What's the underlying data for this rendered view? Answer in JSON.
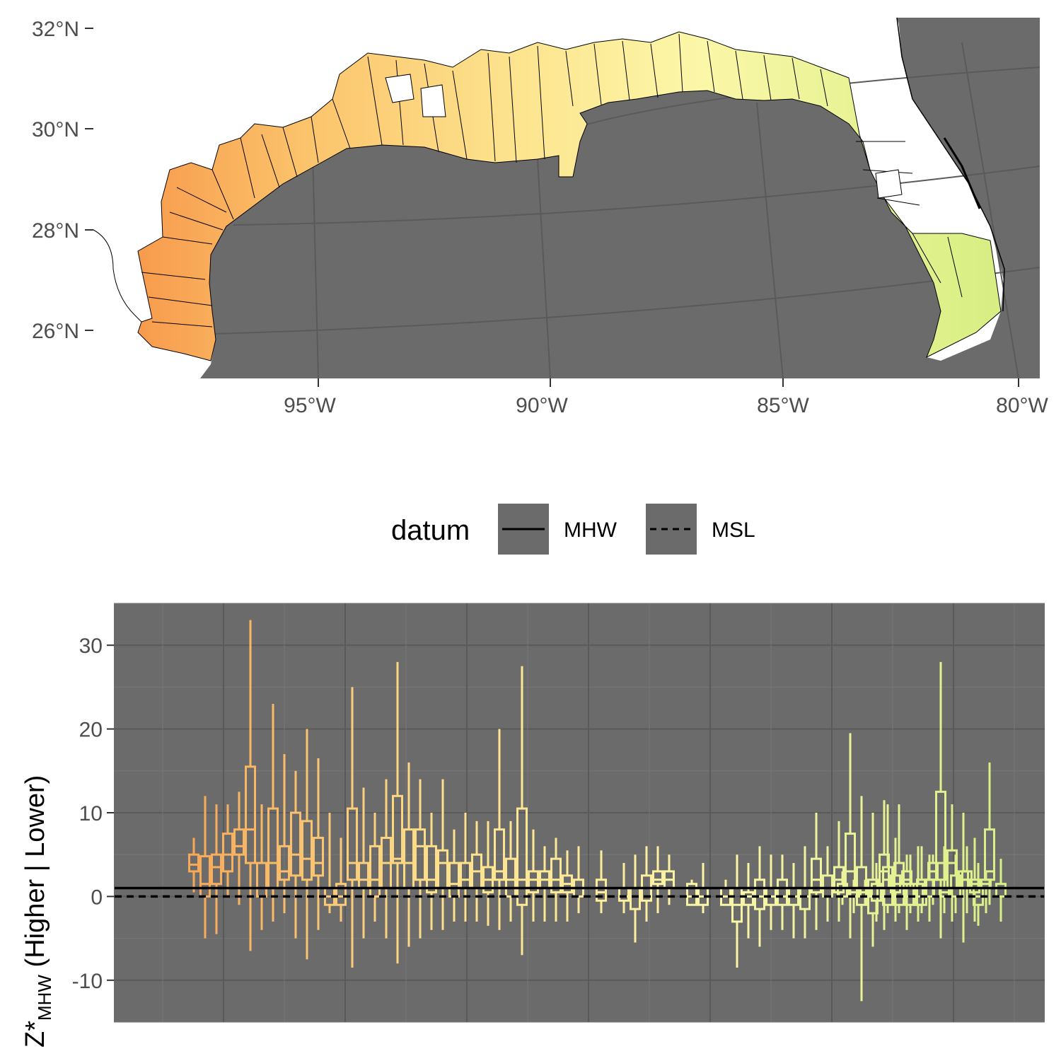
{
  "colors": {
    "panel_background": "#6b6b6b",
    "grid_major": "#5a5a5a",
    "grid_minor": "#777777",
    "land_outline": "#000000",
    "west_fill": "#f7a050",
    "mid_fill": "#fde08a",
    "east_fill": "#d8ef86"
  },
  "map": {
    "lat_labels": [
      "32°N",
      "30°N",
      "28°N",
      "26°N"
    ],
    "lon_labels": [
      "95°W",
      "90°W",
      "85°W",
      "80°W"
    ]
  },
  "legend": {
    "title": "datum",
    "items": [
      {
        "label": "MHW",
        "linetype": "solid"
      },
      {
        "label": "MSL",
        "linetype": "dashed"
      }
    ]
  },
  "chart_data": {
    "type": "boxplot",
    "ylabel_main": "Z*",
    "ylabel_sub": "MHW",
    "ylabel_rest": " (Higher | Lower)",
    "ylim": [
      -15,
      35
    ],
    "yticks": [
      30,
      20,
      10,
      0,
      -10
    ],
    "tick_labels": [
      "30",
      "20",
      "10",
      "0",
      "-10"
    ],
    "xlim": [
      0,
      150
    ],
    "hlines": [
      {
        "name": "MHW",
        "y": 1.0,
        "linetype": "solid"
      },
      {
        "name": "MSL",
        "y": 0.0,
        "linetype": "dashed"
      }
    ],
    "color_ramp": [
      "#f7a050",
      "#fde08a",
      "#fbf6a8",
      "#d8ef86"
    ],
    "boxes": [
      {
        "x": 7,
        "lo": 0.5,
        "q1": 3,
        "q3": 5,
        "hi": 7,
        "med": 3.8
      },
      {
        "x": 9,
        "lo": -5,
        "q1": 0,
        "q3": 4.8,
        "hi": 12,
        "med": 1.5
      },
      {
        "x": 11,
        "lo": -4.5,
        "q1": 1.5,
        "q3": 5,
        "hi": 11,
        "med": 3.5
      },
      {
        "x": 13,
        "lo": 0,
        "q1": 3,
        "q3": 7.5,
        "hi": 11,
        "med": 5
      },
      {
        "x": 15,
        "lo": -1,
        "q1": 5,
        "q3": 8,
        "hi": 12.5,
        "med": 6
      },
      {
        "x": 17,
        "lo": -6.5,
        "q1": 4,
        "q3": 15.5,
        "hi": 33,
        "med": 8
      },
      {
        "x": 19,
        "lo": -4,
        "q1": 0,
        "q3": 4,
        "hi": 11,
        "med": 1
      },
      {
        "x": 21,
        "lo": -3,
        "q1": 1,
        "q3": 10.5,
        "hi": 23,
        "med": 4
      },
      {
        "x": 23,
        "lo": -2,
        "q1": 2,
        "q3": 6,
        "hi": 17,
        "med": 3
      },
      {
        "x": 25,
        "lo": -5,
        "q1": 2.5,
        "q3": 10,
        "hi": 15,
        "med": 5
      },
      {
        "x": 27,
        "lo": -7.5,
        "q1": 2,
        "q3": 9,
        "hi": 20,
        "med": 4.5
      },
      {
        "x": 29,
        "lo": -4,
        "q1": 2.5,
        "q3": 7,
        "hi": 16.5,
        "med": 4
      },
      {
        "x": 31,
        "lo": -2,
        "q1": -1,
        "q3": 1,
        "hi": 10,
        "med": 0
      },
      {
        "x": 33,
        "lo": -3,
        "q1": -1,
        "q3": 1.5,
        "hi": 7,
        "med": 0
      },
      {
        "x": 35,
        "lo": -8.5,
        "q1": 2,
        "q3": 10.5,
        "hi": 25,
        "med": 4
      },
      {
        "x": 37,
        "lo": -5,
        "q1": 1,
        "q3": 4,
        "hi": 13,
        "med": 2
      },
      {
        "x": 39,
        "lo": -3,
        "q1": 0,
        "q3": 6,
        "hi": 10,
        "med": 2
      },
      {
        "x": 41,
        "lo": -5,
        "q1": 1,
        "q3": 7,
        "hi": 14,
        "med": 4
      },
      {
        "x": 43,
        "lo": -8,
        "q1": 4,
        "q3": 12,
        "hi": 28,
        "med": 4.5
      },
      {
        "x": 45,
        "lo": -6,
        "q1": 1,
        "q3": 8,
        "hi": 16,
        "med": 4
      },
      {
        "x": 47,
        "lo": -5,
        "q1": 2,
        "q3": 8,
        "hi": 14,
        "med": 6
      },
      {
        "x": 49,
        "lo": -4,
        "q1": 0.5,
        "q3": 6,
        "hi": 10,
        "med": 2
      },
      {
        "x": 51,
        "lo": -4,
        "q1": 1,
        "q3": 5.5,
        "hi": 14,
        "med": 4
      },
      {
        "x": 53,
        "lo": -3,
        "q1": 0,
        "q3": 4,
        "hi": 8,
        "med": 1.5
      },
      {
        "x": 55,
        "lo": -3,
        "q1": 1,
        "q3": 4,
        "hi": 10,
        "med": 2
      },
      {
        "x": 57,
        "lo": -3,
        "q1": 1,
        "q3": 5,
        "hi": 9,
        "med": 3
      },
      {
        "x": 59,
        "lo": -3.5,
        "q1": 0.5,
        "q3": 3.5,
        "hi": 9,
        "med": 2
      },
      {
        "x": 61,
        "lo": -4,
        "q1": 2,
        "q3": 8,
        "hi": 20,
        "med": 3
      },
      {
        "x": 63,
        "lo": -3,
        "q1": 0,
        "q3": 4.5,
        "hi": 9,
        "med": 2
      },
      {
        "x": 65,
        "lo": -7,
        "q1": -1,
        "q3": 10.5,
        "hi": 27.5,
        "med": 2
      },
      {
        "x": 67,
        "lo": -3,
        "q1": 0.5,
        "q3": 3,
        "hi": 8,
        "med": 2
      },
      {
        "x": 69,
        "lo": -3,
        "q1": 1,
        "q3": 3,
        "hi": 6,
        "med": 2
      },
      {
        "x": 71,
        "lo": -3,
        "q1": 0.5,
        "q3": 4.5,
        "hi": 7,
        "med": 2
      },
      {
        "x": 73,
        "lo": -3,
        "q1": 0.5,
        "q3": 2.5,
        "hi": 5.5,
        "med": 1.5
      },
      {
        "x": 75,
        "lo": -2,
        "q1": 0,
        "q3": 2,
        "hi": 6,
        "med": 1
      },
      {
        "x": 79,
        "lo": -2,
        "q1": -0.5,
        "q3": 2,
        "hi": 5.5,
        "med": 0.5
      },
      {
        "x": 83,
        "lo": -2,
        "q1": -0.5,
        "q3": 1,
        "hi": 4,
        "med": 0
      },
      {
        "x": 85,
        "lo": -5.5,
        "q1": -1.5,
        "q3": 1,
        "hi": 5,
        "med": 0
      },
      {
        "x": 87,
        "lo": -3,
        "q1": -0.5,
        "q3": 2.5,
        "hi": 6,
        "med": 1
      },
      {
        "x": 89,
        "lo": -2,
        "q1": 1.5,
        "q3": 3,
        "hi": 6,
        "med": 2
      },
      {
        "x": 91,
        "lo": -1,
        "q1": 1,
        "q3": 3,
        "hi": 5,
        "med": 2
      },
      {
        "x": 95,
        "lo": -1,
        "q1": -1,
        "q3": 1.5,
        "hi": 2,
        "med": 0
      },
      {
        "x": 97,
        "lo": -2,
        "q1": -1,
        "q3": 1,
        "hi": 4,
        "med": 0
      },
      {
        "x": 101,
        "lo": -1,
        "q1": -1,
        "q3": 1,
        "hi": 2,
        "med": 0
      },
      {
        "x": 103,
        "lo": -8.5,
        "q1": -3,
        "q3": 1,
        "hi": 5,
        "med": -1
      },
      {
        "x": 105,
        "lo": -5,
        "q1": -1,
        "q3": 0.5,
        "hi": 4,
        "med": 0
      },
      {
        "x": 107,
        "lo": -6,
        "q1": -1.5,
        "q3": 2,
        "hi": 6,
        "med": 0
      },
      {
        "x": 109,
        "lo": -4,
        "q1": -1,
        "q3": 1,
        "hi": 5,
        "med": 0
      },
      {
        "x": 111,
        "lo": -4,
        "q1": -1,
        "q3": 2,
        "hi": 5,
        "med": 0
      },
      {
        "x": 113,
        "lo": -5,
        "q1": -1,
        "q3": 1,
        "hi": 4,
        "med": 0
      },
      {
        "x": 115,
        "lo": -5,
        "q1": -1.5,
        "q3": 1,
        "hi": 6,
        "med": 0
      },
      {
        "x": 117,
        "lo": -4,
        "q1": 0.5,
        "q3": 4.5,
        "hi": 10,
        "med": 2
      },
      {
        "x": 119,
        "lo": -3,
        "q1": 0,
        "q3": 2.5,
        "hi": 6,
        "med": 1
      },
      {
        "x": 121,
        "lo": -3,
        "q1": 0.5,
        "q3": 3.5,
        "hi": 9,
        "med": 2
      },
      {
        "x": 123,
        "lo": -5,
        "q1": 1,
        "q3": 7.5,
        "hi": 19.5,
        "med": 3
      },
      {
        "x": 125,
        "lo": -12.5,
        "q1": -1,
        "q3": 3.5,
        "hi": 12,
        "med": 1
      },
      {
        "x": 127,
        "lo": -6,
        "q1": -2,
        "q3": 2,
        "hi": 10,
        "med": 0
      },
      {
        "x": 129,
        "lo": -4,
        "q1": 1,
        "q3": 5,
        "hi": 11.5,
        "med": 3
      },
      {
        "x": 131,
        "lo": -3,
        "q1": 0.5,
        "q3": 2.5,
        "hi": 7,
        "med": 1.5
      },
      {
        "x": 133,
        "lo": -4,
        "q1": 1.5,
        "q3": 3,
        "hi": 5,
        "med": 2
      },
      {
        "x": 135,
        "lo": -3,
        "q1": -1,
        "q3": 1.5,
        "hi": 6,
        "med": 0
      },
      {
        "x": 137,
        "lo": -3,
        "q1": 0,
        "q3": 2,
        "hi": 5,
        "med": 1
      },
      {
        "x": 139,
        "lo": -5,
        "q1": 2,
        "q3": 12.5,
        "hi": 28,
        "med": 4
      },
      {
        "x": 141,
        "lo": -3,
        "q1": 1,
        "q3": 5.5,
        "hi": 11,
        "med": 4
      },
      {
        "x": 143,
        "lo": -5.5,
        "q1": 1,
        "q3": 3,
        "hi": 10,
        "med": 2
      },
      {
        "x": 145,
        "lo": -3,
        "q1": 0.5,
        "q3": 2,
        "hi": 7,
        "med": 1.5
      },
      {
        "x": 147,
        "lo": -2,
        "q1": 1,
        "q3": 2,
        "hi": 3,
        "med": 1.5
      }
    ],
    "boxes_east": [
      {
        "x": 0.5,
        "lo": -1,
        "q1": 0,
        "q3": 1.5,
        "hi": 3,
        "med": 1
      },
      {
        "x": 1.5,
        "lo": -2,
        "q1": 0,
        "q3": 1,
        "hi": 2,
        "med": 0.5
      },
      {
        "x": 2.5,
        "lo": -1,
        "q1": 0,
        "q3": 1,
        "hi": 2,
        "med": 0.5
      },
      {
        "x": 3.5,
        "lo": -3,
        "q1": -0.5,
        "q3": 1.5,
        "hi": 4,
        "med": 1
      },
      {
        "x": 4.5,
        "lo": -2,
        "q1": -1,
        "q3": 3.5,
        "hi": 11,
        "med": 2
      },
      {
        "x": 5.5,
        "lo": -2,
        "q1": -1,
        "q3": 4,
        "hi": 11,
        "med": 1
      },
      {
        "x": 6.5,
        "lo": -2,
        "q1": -1,
        "q3": 1,
        "hi": 5,
        "med": 0
      },
      {
        "x": 7.5,
        "lo": -2,
        "q1": -1,
        "q3": 2,
        "hi": 6,
        "med": 1
      },
      {
        "x": 8.5,
        "lo": -1,
        "q1": 2,
        "q3": 4,
        "hi": 5,
        "med": 3
      },
      {
        "x": 9.5,
        "lo": -2,
        "q1": 0,
        "q3": 1,
        "hi": 6,
        "med": 0.5
      },
      {
        "x": 10.5,
        "lo": -2,
        "q1": 0,
        "q3": 2.5,
        "hi": 5,
        "med": 1
      },
      {
        "x": 11.5,
        "lo": -2,
        "q1": 1,
        "q3": 3,
        "hi": 6,
        "med": 2
      },
      {
        "x": 12.5,
        "lo": -3.5,
        "q1": -1,
        "q3": 1,
        "hi": 4,
        "med": 0
      },
      {
        "x": 13.5,
        "lo": -1,
        "q1": 2,
        "q3": 8,
        "hi": 16,
        "med": 3
      },
      {
        "x": 14.5,
        "lo": -3,
        "q1": 0,
        "q3": 1.5,
        "hi": 4.5,
        "med": 1
      }
    ]
  }
}
